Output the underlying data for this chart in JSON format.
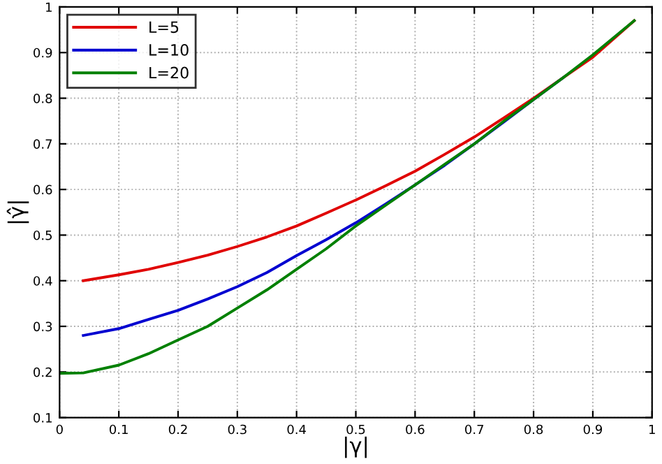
{
  "chart_data": {
    "type": "line",
    "xlabel": "|γ|",
    "ylabel": "|γ̂|",
    "xlim": [
      0,
      1
    ],
    "ylim": [
      0.1,
      1
    ],
    "xticks": [
      0,
      0.1,
      0.2,
      0.3,
      0.4,
      0.5,
      0.6,
      0.7,
      0.8,
      0.9,
      1
    ],
    "yticks": [
      0.1,
      0.2,
      0.3,
      0.4,
      0.5,
      0.6,
      0.7,
      0.8,
      0.9,
      1
    ],
    "grid": true,
    "legend": "top left",
    "line_style": "solid",
    "marker": "none",
    "series": [
      {
        "name": "L=5",
        "color": "#e00000",
        "x": [
          0.04,
          0.1,
          0.15,
          0.2,
          0.25,
          0.3,
          0.35,
          0.4,
          0.45,
          0.5,
          0.55,
          0.6,
          0.65,
          0.7,
          0.75,
          0.8,
          0.85,
          0.9,
          0.97
        ],
        "values": [
          0.4,
          0.413,
          0.425,
          0.44,
          0.456,
          0.475,
          0.496,
          0.52,
          0.548,
          0.577,
          0.608,
          0.64,
          0.677,
          0.715,
          0.757,
          0.8,
          0.845,
          0.89,
          0.97
        ]
      },
      {
        "name": "L=10",
        "color": "#0000d0",
        "x": [
          0.04,
          0.1,
          0.15,
          0.2,
          0.25,
          0.3,
          0.35,
          0.4,
          0.45,
          0.5,
          0.55,
          0.6,
          0.65,
          0.7,
          0.75,
          0.8,
          0.85
        ],
        "values": [
          0.28,
          0.295,
          0.315,
          0.335,
          0.36,
          0.387,
          0.418,
          0.455,
          0.49,
          0.527,
          0.568,
          0.61,
          0.653,
          0.7,
          0.748,
          0.797,
          0.845
        ]
      },
      {
        "name": "L=20",
        "color": "#008000",
        "x": [
          0.0,
          0.04,
          0.1,
          0.15,
          0.2,
          0.25,
          0.3,
          0.35,
          0.4,
          0.45,
          0.5,
          0.55,
          0.6,
          0.65,
          0.7,
          0.75,
          0.8,
          0.85,
          0.9,
          0.97
        ],
        "values": [
          0.197,
          0.198,
          0.215,
          0.24,
          0.27,
          0.3,
          0.34,
          0.38,
          0.425,
          0.47,
          0.52,
          0.565,
          0.61,
          0.655,
          0.7,
          0.75,
          0.797,
          0.845,
          0.895,
          0.97
        ]
      }
    ]
  }
}
